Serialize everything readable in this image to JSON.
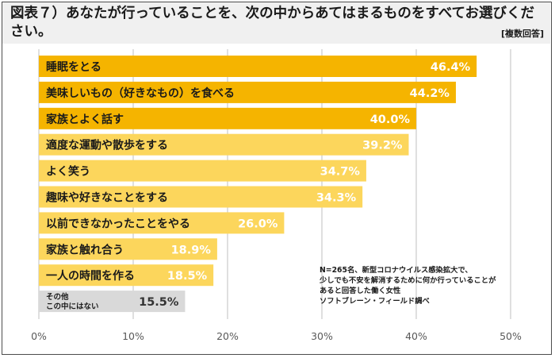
{
  "header": {
    "title": "図表７）あなたが行っていることを、次の中からあてはまるものをすべてお選びください。",
    "note_tag": "[複数回答]"
  },
  "footnote": [
    "N=265名、新型コロナウイルス感染拡大で、",
    "少しでも不安を解消するために何か行っていることが",
    "あると回答した働く女性",
    "ソフトブレーン・フィールド調べ"
  ],
  "colors": {
    "top3": "#f5b400",
    "others": "#fcd65c",
    "other_category": "#d9d9d9",
    "axis": "#bfbfbf",
    "header_bg": "#f0f0f0"
  },
  "chart_data": {
    "type": "bar",
    "orientation": "horizontal",
    "xlim": [
      0,
      50
    ],
    "xticks": [
      "0%",
      "10%",
      "20%",
      "30%",
      "40%",
      "50%"
    ],
    "grid": true,
    "bars": [
      {
        "label": [
          "睡眠をとる"
        ],
        "value": 46.4,
        "value_label": "46.4%",
        "group": "top3"
      },
      {
        "label": [
          "美味しいもの（好きなもの）を食べる"
        ],
        "value": 44.2,
        "value_label": "44.2%",
        "group": "top3"
      },
      {
        "label": [
          "家族とよく話す"
        ],
        "value": 40.0,
        "value_label": "40.0%",
        "group": "top3"
      },
      {
        "label": [
          "適度な運動や散歩をする"
        ],
        "value": 39.2,
        "value_label": "39.2%",
        "group": "others"
      },
      {
        "label": [
          "よく笑う"
        ],
        "value": 34.7,
        "value_label": "34.7%",
        "group": "others"
      },
      {
        "label": [
          "趣味や好きなことをする"
        ],
        "value": 34.3,
        "value_label": "34.3%",
        "group": "others"
      },
      {
        "label": [
          "以前できなかったことをやる"
        ],
        "value": 26.0,
        "value_label": "26.0%",
        "group": "others"
      },
      {
        "label": [
          "家族と触れ合う"
        ],
        "value": 18.9,
        "value_label": "18.9%",
        "group": "others"
      },
      {
        "label": [
          "一人の時間を作る"
        ],
        "value": 18.5,
        "value_label": "18.5%",
        "group": "others"
      },
      {
        "label": [
          "その他",
          "この中にはない"
        ],
        "value": 15.5,
        "value_label": "15.5%",
        "group": "other_category"
      }
    ]
  }
}
